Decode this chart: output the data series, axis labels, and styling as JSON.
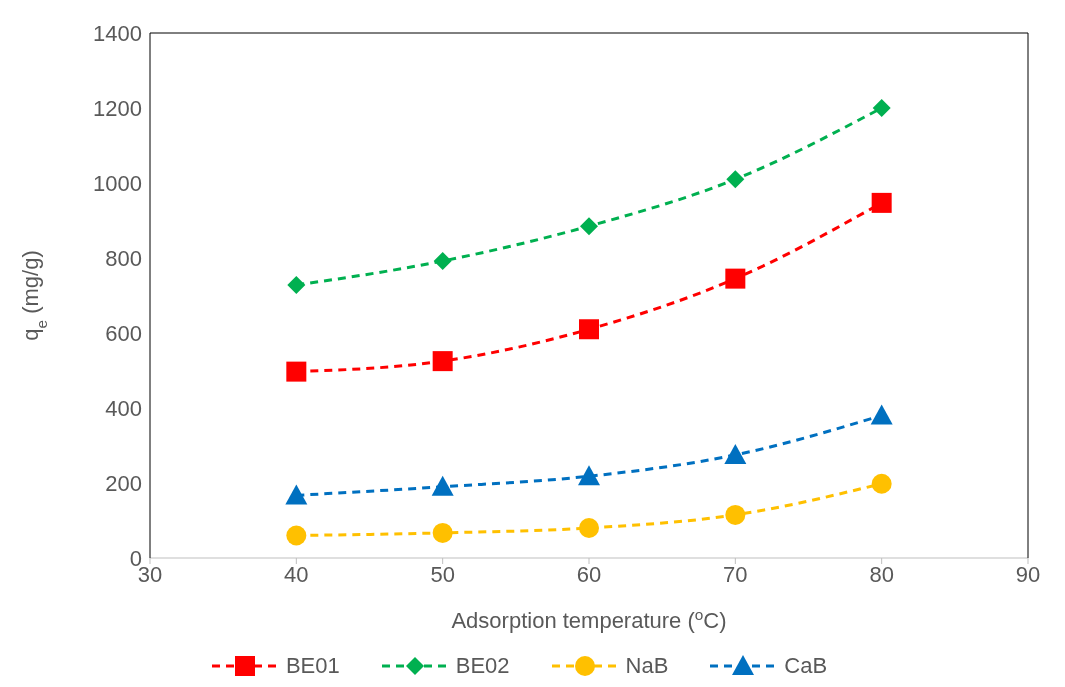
{
  "chart_data": {
    "type": "line",
    "xlabel": "Adsorption temperature ($^{o}$C)",
    "ylabel": "q$_{e}$ (mg/g)",
    "x": [
      40,
      50,
      60,
      70,
      80
    ],
    "series": [
      {
        "name": "BE01",
        "color": "#ff0000",
        "marker": "square",
        "values": [
          497,
          525,
          610,
          745,
          947
        ]
      },
      {
        "name": "BE02",
        "color": "#00b050",
        "marker": "diamond",
        "values": [
          728,
          792,
          885,
          1010,
          1200
        ]
      },
      {
        "name": "NaB",
        "color": "#ffc000",
        "marker": "circle",
        "values": [
          60,
          67,
          80,
          115,
          198
        ]
      },
      {
        "name": "CaB",
        "color": "#0070c0",
        "marker": "triangle",
        "values": [
          167,
          190,
          218,
          275,
          380
        ]
      }
    ],
    "xlim": [
      30,
      90
    ],
    "xticks": [
      30,
      40,
      50,
      60,
      70,
      80,
      90
    ],
    "ylim": [
      0,
      1400
    ],
    "yticks": [
      0,
      200,
      400,
      600,
      800,
      1000,
      1200,
      1400
    ],
    "grid": false,
    "legend": "bottom",
    "line_style": "dashed"
  }
}
